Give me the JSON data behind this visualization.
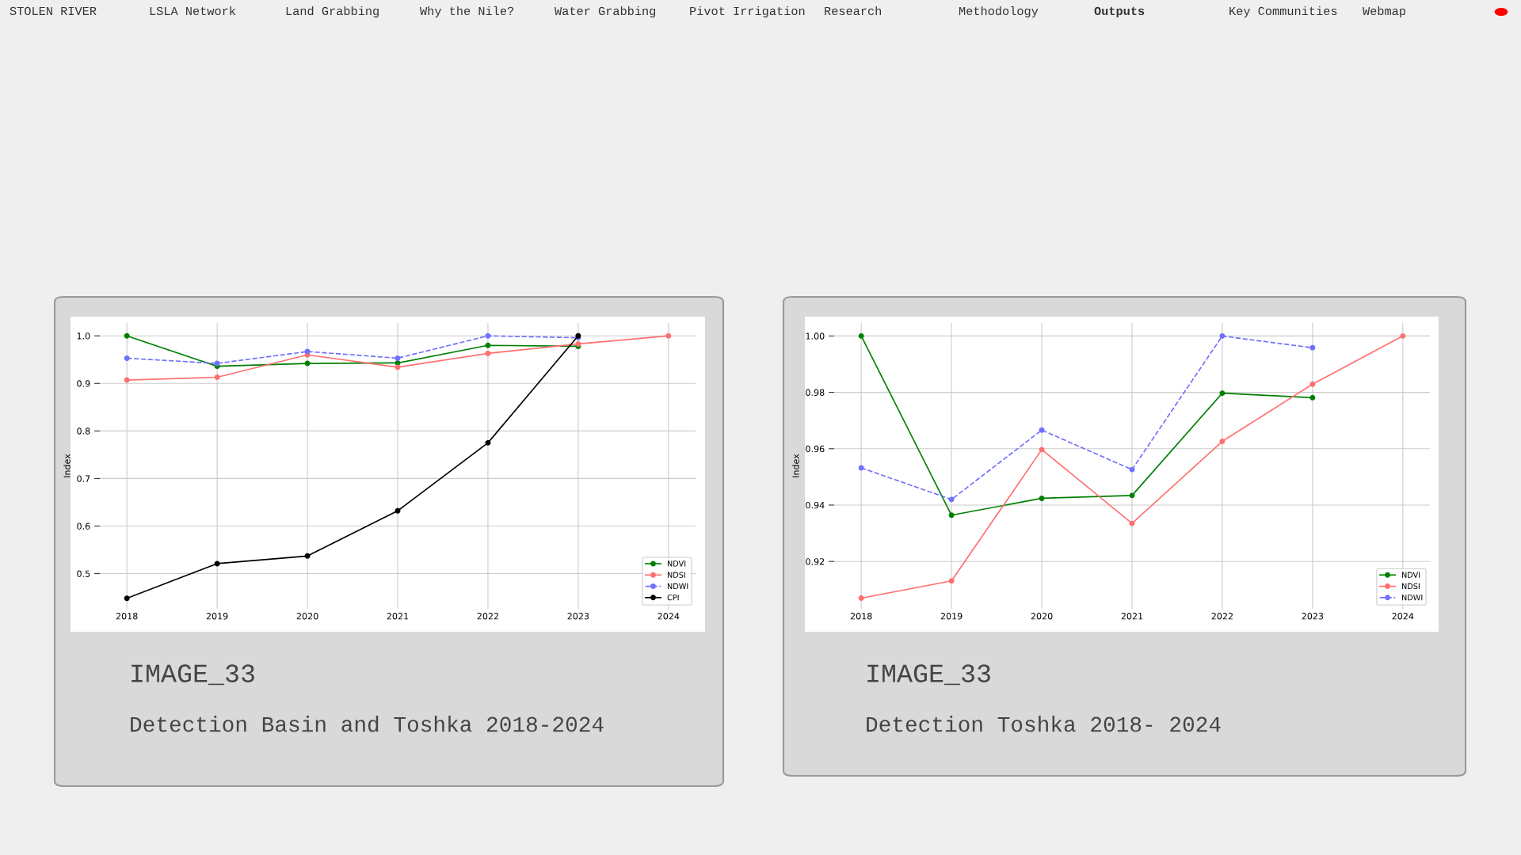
{
  "chart_data": [
    {
      "type": "line",
      "title": "IMAGE_33",
      "subtitle": "Detection Basin and Toshka 2018-2024",
      "ylabel": "Index",
      "x": [
        2018,
        2019,
        2020,
        2021,
        2022,
        2023,
        2024
      ],
      "series": [
        {
          "name": "NDVI",
          "color": "#008000",
          "values": [
            1.0,
            0.936,
            0.942,
            0.943,
            0.98,
            0.978,
            null
          ]
        },
        {
          "name": "NDSI",
          "color": "#ff7070",
          "values": [
            0.907,
            0.913,
            0.96,
            0.934,
            0.963,
            0.983,
            1.0
          ]
        },
        {
          "name": "NDWI",
          "color": "#7070ff",
          "line_style": "dashed",
          "values": [
            0.953,
            0.942,
            0.967,
            0.953,
            1.0,
            0.996,
            null
          ]
        },
        {
          "name": "CPI",
          "color": "#000000",
          "values": [
            0.448,
            0.521,
            0.537,
            0.632,
            0.775,
            1.0,
            null
          ]
        }
      ],
      "xlim": [
        2017.7,
        2024.3
      ],
      "xticks": [
        2018,
        2019,
        2020,
        2021,
        2022,
        2023,
        2024
      ],
      "ylim": [
        0.426,
        1.027
      ],
      "yticks": [
        {
          "value": 0.5,
          "label": "0.5"
        },
        {
          "value": 0.6,
          "label": "0.6"
        },
        {
          "value": 0.7,
          "label": "0.7"
        },
        {
          "value": 0.8,
          "label": "0.8"
        },
        {
          "value": 0.9,
          "label": "0.9"
        },
        {
          "value": 1.0,
          "label": "1.0"
        }
      ],
      "grid": true,
      "legend": "bottom right",
      "marker": "circle"
    },
    {
      "type": "line",
      "title": "IMAGE_33",
      "subtitle": "Detection Toshka 2018- 2024",
      "ylabel": "Index",
      "x": [
        2018,
        2019,
        2020,
        2021,
        2022,
        2023,
        2024
      ],
      "series": [
        {
          "name": "NDVI",
          "color": "#008000",
          "values": [
            1.0,
            0.9364,
            0.9424,
            0.9434,
            0.9797,
            0.9781,
            null
          ]
        },
        {
          "name": "NDSI",
          "color": "#ff7070",
          "values": [
            0.907,
            0.9131,
            0.9597,
            0.9335,
            0.9626,
            0.9829,
            1.0
          ]
        },
        {
          "name": "NDWI",
          "color": "#7070ff",
          "line_style": "dashed",
          "values": [
            0.9532,
            0.942,
            0.9666,
            0.9526,
            1.0,
            0.9958,
            null
          ]
        }
      ],
      "xlim": [
        2017.7,
        2024.3
      ],
      "xticks": [
        2018,
        2019,
        2020,
        2021,
        2022,
        2023,
        2024
      ],
      "ylim": [
        0.9032,
        1.0046
      ],
      "yticks": [
        {
          "value": 0.92,
          "label": "0.92"
        },
        {
          "value": 0.94,
          "label": "0.94"
        },
        {
          "value": 0.96,
          "label": "0.96"
        },
        {
          "value": 0.98,
          "label": "0.98"
        },
        {
          "value": 1.0,
          "label": "1.00"
        }
      ],
      "grid": true,
      "legend": "bottom right",
      "marker": "circle"
    },
    {
      "type": "other",
      "annotations": [
        "STOLEN RIVER",
        "LSLA Network",
        "Land Grabbing",
        "Why the Nile?",
        "Water Grabbing",
        "Pivot Irrigation",
        "Research",
        "Methodology",
        "Outputs",
        "Key Communities",
        "Webmap"
      ]
    }
  ]
}
